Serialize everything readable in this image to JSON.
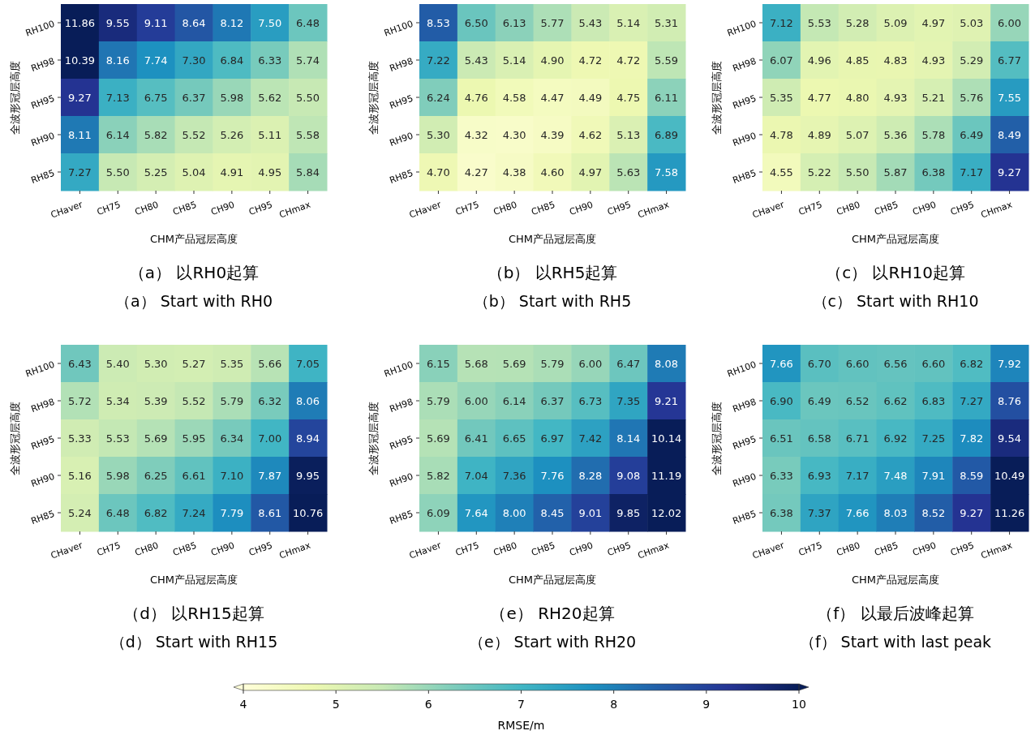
{
  "chart_data": [
    {
      "type": "heatmap",
      "title": "（a） 以RH0起算",
      "subtitle": "（a） Start with RH0",
      "xlabel": "CHM产品冠层高度",
      "ylabel": "全波形冠层高度",
      "categories": [
        "CHaver",
        "CH75",
        "CH80",
        "CH85",
        "CH90",
        "CH95",
        "CHmax"
      ],
      "y_categories": [
        "RH100",
        "RH98",
        "RH95",
        "RH90",
        "RH85"
      ],
      "data_labels": true,
      "clim": [
        4,
        10
      ],
      "cticks": [
        4,
        5,
        6,
        7,
        8,
        9,
        10
      ],
      "clabel": "RMSE/m",
      "cells": [
        [
          11.86,
          9.55,
          9.11,
          8.64,
          8.12,
          7.5,
          6.48
        ],
        [
          10.39,
          8.16,
          7.74,
          7.3,
          6.84,
          6.33,
          5.74
        ],
        [
          9.27,
          7.13,
          6.75,
          6.37,
          5.98,
          5.62,
          5.5
        ],
        [
          8.11,
          6.14,
          5.82,
          5.52,
          5.26,
          5.11,
          5.58
        ],
        [
          7.27,
          5.5,
          5.25,
          5.04,
          4.91,
          4.95,
          5.84
        ]
      ],
      "cell_labels": [
        [
          "11.86",
          "9.55",
          "9.11",
          "8.64",
          "8.12",
          "7.50",
          "6.48"
        ],
        [
          "10.39",
          "8.16",
          "7.74",
          "7.30",
          "6.84",
          "6.33",
          "5.74"
        ],
        [
          "9.27",
          "7.13",
          "6.75",
          "6.37",
          "5.98",
          "5.62",
          "5.50"
        ],
        [
          "8.11",
          "6.14",
          "5.82",
          "5.52",
          "5.26",
          "5.11",
          "5.58"
        ],
        [
          "7.27",
          "5.50",
          "5.25",
          "5.04",
          "4.91",
          "4.95",
          "5.84"
        ]
      ]
    },
    {
      "type": "heatmap",
      "title": "（b） 以RH5起算",
      "subtitle": "（b） Start with RH5",
      "xlabel": "CHM产品冠层高度",
      "ylabel": "全波形冠层高度",
      "categories": [
        "CHaver",
        "CH75",
        "CH80",
        "CH85",
        "CH90",
        "CH95",
        "CHmax"
      ],
      "y_categories": [
        "RH100",
        "RH98",
        "RH95",
        "RH90",
        "RH85"
      ],
      "data_labels": true,
      "cells": [
        [
          8.53,
          6.5,
          6.13,
          5.77,
          5.43,
          5.14,
          5.31
        ],
        [
          7.22,
          5.43,
          5.14,
          4.9,
          4.72,
          4.72,
          5.59
        ],
        [
          6.24,
          4.76,
          4.58,
          4.47,
          4.49,
          4.75,
          6.11
        ],
        [
          5.3,
          4.32,
          4.3,
          4.39,
          4.62,
          5.13,
          6.89
        ],
        [
          4.7,
          4.27,
          4.38,
          4.6,
          4.97,
          5.63,
          7.58
        ]
      ],
      "cell_labels": [
        [
          "8.53",
          "6.50",
          "6.13",
          "5.77",
          "5.43",
          "5.14",
          "5.31"
        ],
        [
          "7.22",
          "5.43",
          "5.14",
          "4.90",
          "4.72",
          "4.72",
          "5.59"
        ],
        [
          "6.24",
          "4.76",
          "4.58",
          "4.47",
          "4.49",
          "4.75",
          "6.11"
        ],
        [
          "5.30",
          "4.32",
          "4.30",
          "4.39",
          "4.62",
          "5.13",
          "6.89"
        ],
        [
          "4.70",
          "4.27",
          "4.38",
          "4.60",
          "4.97",
          "5.63",
          "7.58"
        ]
      ]
    },
    {
      "type": "heatmap",
      "title": "（c） 以RH10起算",
      "subtitle": "（c） Start with RH10",
      "xlabel": "CHM产品冠层高度",
      "ylabel": "全波形冠层高度",
      "categories": [
        "CHaver",
        "CH75",
        "CH80",
        "CH85",
        "CH90",
        "CH95",
        "CHmax"
      ],
      "y_categories": [
        "RH100",
        "RH98",
        "RH95",
        "RH90",
        "RH85"
      ],
      "data_labels": true,
      "cells": [
        [
          7.12,
          5.53,
          5.28,
          5.09,
          4.97,
          5.03,
          6.0
        ],
        [
          6.07,
          4.96,
          4.85,
          4.83,
          4.93,
          5.29,
          6.77
        ],
        [
          5.35,
          4.77,
          4.8,
          4.93,
          5.21,
          5.76,
          7.55
        ],
        [
          4.78,
          4.89,
          5.07,
          5.36,
          5.78,
          6.49,
          8.49
        ],
        [
          4.55,
          5.22,
          5.5,
          5.87,
          6.38,
          7.17,
          9.27
        ]
      ],
      "cell_labels": [
        [
          "7.12",
          "5.53",
          "5.28",
          "5.09",
          "4.97",
          "5.03",
          "6.00"
        ],
        [
          "6.07",
          "4.96",
          "4.85",
          "4.83",
          "4.93",
          "5.29",
          "6.77"
        ],
        [
          "5.35",
          "4.77",
          "4.80",
          "4.93",
          "5.21",
          "5.76",
          "7.55"
        ],
        [
          "4.78",
          "4.89",
          "5.07",
          "5.36",
          "5.78",
          "6.49",
          "8.49"
        ],
        [
          "4.55",
          "5.22",
          "5.50",
          "5.87",
          "6.38",
          "7.17",
          "9.27"
        ]
      ]
    },
    {
      "type": "heatmap",
      "title": "（d） 以RH15起算",
      "subtitle": "（d） Start with RH15",
      "xlabel": "CHM产品冠层高度",
      "ylabel": "全波形冠层高度",
      "categories": [
        "CHaver",
        "CH75",
        "CH80",
        "CH85",
        "CH90",
        "CH95",
        "CHmax"
      ],
      "y_categories": [
        "RH100",
        "RH98",
        "RH95",
        "RH90",
        "RH85"
      ],
      "data_labels": true,
      "cells": [
        [
          6.43,
          5.4,
          5.3,
          5.27,
          5.35,
          5.66,
          7.05
        ],
        [
          5.72,
          5.34,
          5.39,
          5.52,
          5.79,
          6.32,
          8.06
        ],
        [
          5.33,
          5.53,
          5.69,
          5.95,
          6.34,
          7.0,
          8.94
        ],
        [
          5.16,
          5.98,
          6.25,
          6.61,
          7.1,
          7.87,
          9.95
        ],
        [
          5.24,
          6.48,
          6.82,
          7.24,
          7.79,
          8.61,
          10.76
        ]
      ],
      "cell_labels": [
        [
          "6.43",
          "5.40",
          "5.30",
          "5.27",
          "5.35",
          "5.66",
          "7.05"
        ],
        [
          "5.72",
          "5.34",
          "5.39",
          "5.52",
          "5.79",
          "6.32",
          "8.06"
        ],
        [
          "5.33",
          "5.53",
          "5.69",
          "5.95",
          "6.34",
          "7.00",
          "8.94"
        ],
        [
          "5.16",
          "5.98",
          "6.25",
          "6.61",
          "7.10",
          "7.87",
          "9.95"
        ],
        [
          "5.24",
          "6.48",
          "6.82",
          "7.24",
          "7.79",
          "8.61",
          "10.76"
        ]
      ]
    },
    {
      "type": "heatmap",
      "title": "（e） RH20起算",
      "subtitle": "（e） Start with RH20",
      "xlabel": "CHM产品冠层高度",
      "ylabel": "全波形冠层高度",
      "categories": [
        "CHaver",
        "CH75",
        "CH80",
        "CH85",
        "CH90",
        "CH95",
        "CHmax"
      ],
      "y_categories": [
        "RH100",
        "RH98",
        "RH95",
        "RH90",
        "RH85"
      ],
      "data_labels": true,
      "cells": [
        [
          6.15,
          5.68,
          5.69,
          5.79,
          6.0,
          6.47,
          8.08
        ],
        [
          5.79,
          6.0,
          6.14,
          6.37,
          6.73,
          7.35,
          9.21
        ],
        [
          5.69,
          6.41,
          6.65,
          6.97,
          7.42,
          8.14,
          10.14
        ],
        [
          5.82,
          7.04,
          7.36,
          7.76,
          8.28,
          9.08,
          11.19
        ],
        [
          6.09,
          7.64,
          8.0,
          8.45,
          9.01,
          9.85,
          12.02
        ]
      ],
      "cell_labels": [
        [
          "6.15",
          "5.68",
          "5.69",
          "5.79",
          "6.00",
          "6.47",
          "8.08"
        ],
        [
          "5.79",
          "6.00",
          "6.14",
          "6.37",
          "6.73",
          "7.35",
          "9.21"
        ],
        [
          "5.69",
          "6.41",
          "6.65",
          "6.97",
          "7.42",
          "8.14",
          "10.14"
        ],
        [
          "5.82",
          "7.04",
          "7.36",
          "7.76",
          "8.28",
          "9.08",
          "11.19"
        ],
        [
          "6.09",
          "7.64",
          "8.00",
          "8.45",
          "9.01",
          "9.85",
          "12.02"
        ]
      ]
    },
    {
      "type": "heatmap",
      "title": "（f） 以最后波峰起算",
      "subtitle": "（f） Start with last peak",
      "xlabel": "CHM产品冠层高度",
      "ylabel": "全波形冠层高度",
      "categories": [
        "CHaver",
        "CH75",
        "CH80",
        "CH85",
        "CH90",
        "CH95",
        "CHmax"
      ],
      "y_categories": [
        "RH100",
        "RH98",
        "RH95",
        "RH90",
        "RH85"
      ],
      "data_labels": true,
      "cells": [
        [
          7.66,
          6.7,
          6.6,
          6.56,
          6.6,
          6.82,
          7.92
        ],
        [
          6.9,
          6.49,
          6.52,
          6.62,
          6.83,
          7.27,
          8.76
        ],
        [
          6.51,
          6.58,
          6.71,
          6.92,
          7.25,
          7.82,
          9.54
        ],
        [
          6.33,
          6.93,
          7.17,
          7.48,
          7.91,
          8.59,
          10.49
        ],
        [
          6.38,
          7.37,
          7.66,
          8.03,
          8.52,
          9.27,
          11.26
        ]
      ],
      "cell_labels": [
        [
          "7.66",
          "6.70",
          "6.60",
          "6.56",
          "6.60",
          "6.82",
          "7.92"
        ],
        [
          "6.90",
          "6.49",
          "6.52",
          "6.62",
          "6.83",
          "7.27",
          "8.76"
        ],
        [
          "6.51",
          "6.58",
          "6.71",
          "6.92",
          "7.25",
          "7.82",
          "9.54"
        ],
        [
          "6.33",
          "6.93",
          "7.17",
          "7.48",
          "7.91",
          "8.59",
          "10.49"
        ],
        [
          "6.38",
          "7.37",
          "7.66",
          "8.03",
          "8.52",
          "9.27",
          "11.26"
        ]
      ]
    }
  ]
}
